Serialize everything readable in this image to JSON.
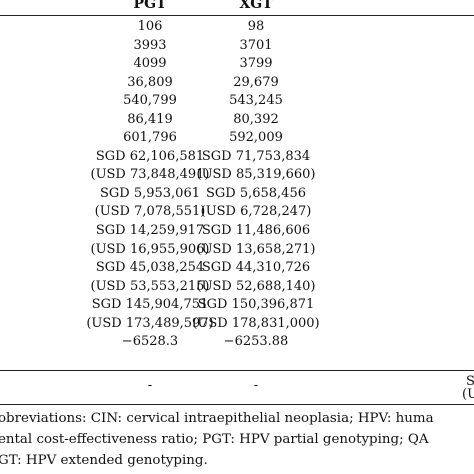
{
  "table": {
    "headers": {
      "pgt": "PGT",
      "xgt": "XGT"
    },
    "rows": [
      {
        "pgt": "106",
        "xgt": "98"
      },
      {
        "pgt": "3993",
        "xgt": "3701"
      },
      {
        "pgt": "4099",
        "xgt": "3799"
      },
      {
        "pgt": "36,809",
        "xgt": "29,679"
      },
      {
        "pgt": "540,799",
        "xgt": "543,245"
      },
      {
        "pgt": "86,419",
        "xgt": "80,392"
      },
      {
        "pgt": "601,796",
        "xgt": "592,009"
      },
      {
        "pgt": "SGD 62,106,581",
        "xgt": "SGD 71,753,834"
      },
      {
        "pgt": "(USD 73,848,491)",
        "xgt": "(USD 85,319,660)"
      },
      {
        "pgt": "SGD 5,953,061",
        "xgt": "SGD 5,658,456"
      },
      {
        "pgt": "(USD 7,078,551)",
        "xgt": "(USD 6,728,247)"
      },
      {
        "pgt": "SGD 14,259,917",
        "xgt": "SGD 11,486,606"
      },
      {
        "pgt": "(USD 16,955,906)",
        "xgt": "(USD 13,658,271)"
      },
      {
        "pgt": "SGD 45,038,254",
        "xgt": "SGD 44,310,726"
      },
      {
        "pgt": "(USD 53,553,215)",
        "xgt": "(USD 52,688,140)"
      },
      {
        "pgt": "SGD 145,904,751",
        "xgt": "SGD 150,396,871"
      },
      {
        "pgt": "(USD 173,489,597)",
        "xgt": "(USD 178,831,000)"
      },
      {
        "pgt": "−6528.3",
        "xgt": "−6253.88"
      }
    ],
    "last_row": {
      "pgt": "-",
      "xgt": "-",
      "right_top": "S",
      "right_bottom": "(U"
    }
  },
  "footnote": {
    "line1": "obreviations: CIN: cervical intraepithelial neoplasia; HPV: huma",
    "line2": "ental cost-effectiveness ratio; PGT: HPV partial genotyping; QA",
    "line3": "GT: HPV extended genotyping."
  }
}
